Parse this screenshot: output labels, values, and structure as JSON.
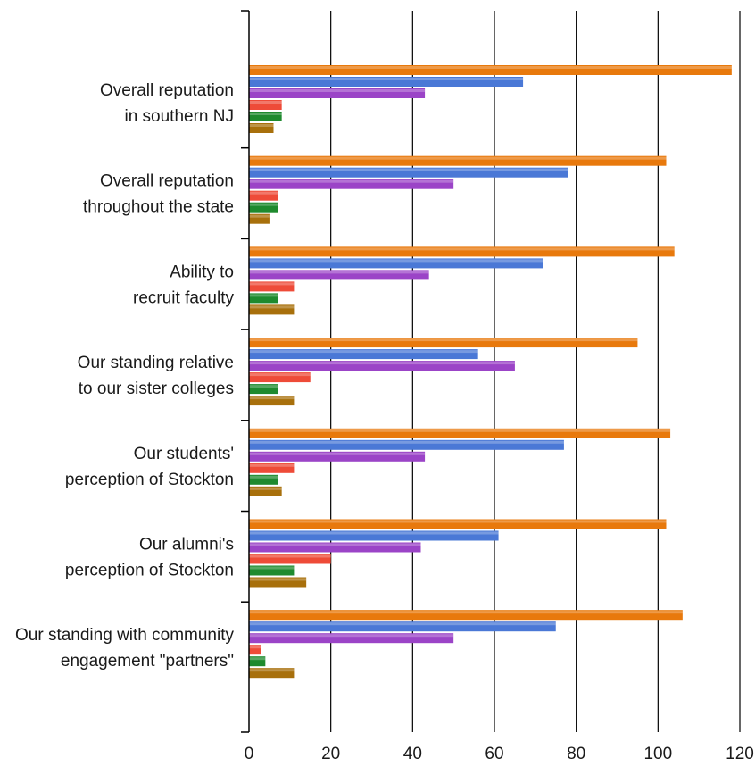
{
  "chart_data": {
    "type": "bar",
    "orientation": "horizontal",
    "categories": [
      [
        "Overall reputation",
        "in southern NJ"
      ],
      [
        "Overall reputation",
        "throughout the state"
      ],
      [
        "Ability to",
        "recruit faculty"
      ],
      [
        "Our standing relative",
        "to our sister colleges"
      ],
      [
        "Our students'",
        "perception of Stockton"
      ],
      [
        "Our alumni's",
        "perception of Stockton"
      ],
      [
        "Our standing with community",
        "engagement \"partners\""
      ]
    ],
    "series": [
      {
        "color": "#E8790C",
        "values": [
          118,
          102,
          104,
          95,
          103,
          102,
          106
        ]
      },
      {
        "color": "#4A78D6",
        "values": [
          67,
          78,
          72,
          56,
          77,
          61,
          75
        ]
      },
      {
        "color": "#9B44C7",
        "values": [
          43,
          50,
          44,
          65,
          43,
          42,
          50
        ]
      },
      {
        "color": "#EE4B38",
        "values": [
          8,
          7,
          11,
          15,
          11,
          20,
          3
        ]
      },
      {
        "color": "#1E8A2E",
        "values": [
          8,
          7,
          7,
          7,
          7,
          11,
          4
        ]
      },
      {
        "color": "#A8700C",
        "values": [
          6,
          5,
          11,
          11,
          8,
          14,
          11
        ]
      }
    ],
    "xlim": [
      0,
      120
    ],
    "xticks": [
      0,
      20,
      40,
      60,
      80,
      100,
      120
    ],
    "grid": true,
    "legend": "none"
  }
}
